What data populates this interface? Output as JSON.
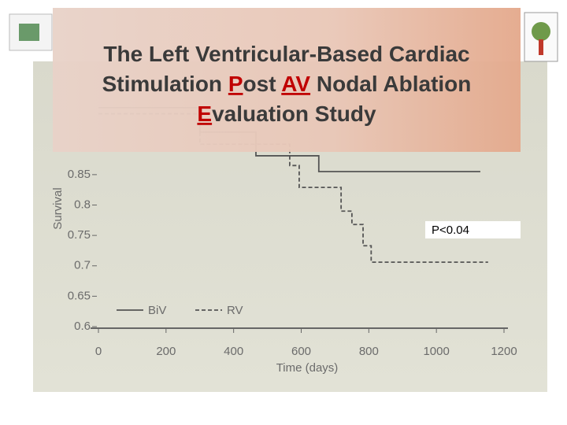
{
  "slide_title": [
    [
      {
        "text": "The Left Ventricular-Based Cardiac"
      }
    ],
    [
      {
        "text": "Stimulation "
      },
      {
        "text": "P",
        "color": "#c00000"
      },
      {
        "text": "ost "
      },
      {
        "text": "AV",
        "color": "#c00000"
      },
      {
        "text": " Nodal Ablation"
      }
    ],
    [
      {
        "text": "E",
        "color": "#c00000"
      },
      {
        "text": "valuation Study"
      }
    ]
  ],
  "chart_data": {
    "type": "step",
    "xlabel": "Time (days)",
    "ylabel": "Survival",
    "xlim": [
      0,
      1200
    ],
    "xticks": [
      0,
      200,
      400,
      600,
      800,
      1000,
      1200
    ],
    "ylim": [
      0.6,
      1.0
    ],
    "yticks": [
      0.6,
      0.65,
      0.7,
      0.75,
      0.8,
      0.85
    ],
    "annotation": "P<0.04",
    "series": [
      {
        "name": "BiV",
        "color": "#555555",
        "dash": false,
        "x": [
          0,
          300,
          466,
          652,
          1130
        ],
        "values": [
          0.96,
          0.92,
          0.881,
          0.855,
          0.855
        ]
      },
      {
        "name": "RV",
        "color": "#555555",
        "dash": true,
        "x": [
          0,
          300,
          566,
          594,
          718,
          750,
          783,
          807,
          1153
        ],
        "values": [
          0.95,
          0.9,
          0.865,
          0.829,
          0.79,
          0.768,
          0.733,
          0.706,
          0.706
        ]
      }
    ]
  }
}
